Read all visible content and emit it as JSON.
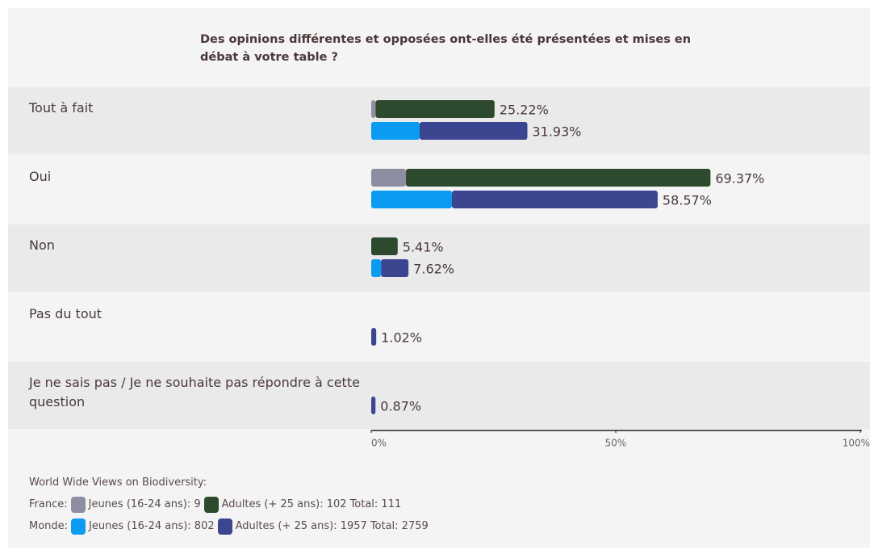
{
  "chart_data": {
    "type": "bar",
    "orientation": "horizontal",
    "stacked": true,
    "title": "Des opinions différentes et opposées ont-elles été présentées et mises en débat à votre table ?",
    "categories": [
      "Tout à fait",
      "Oui",
      "Non",
      "Pas du tout",
      "Je ne sais pas / Je ne souhaite pas répondre à cette question"
    ],
    "xlim": [
      0,
      100
    ],
    "xticks": [
      {
        "value": 0,
        "label": "0%"
      },
      {
        "value": 50,
        "label": "50%"
      },
      {
        "value": 100,
        "label": "100%"
      }
    ],
    "source": "World Wide Views on Biodiversity:",
    "groups": [
      {
        "name": "France:",
        "total": "Total: 111",
        "values": [
          25.22,
          69.37,
          5.41,
          null,
          null
        ],
        "value_labels": [
          "25.22%",
          "69.37%",
          "5.41%",
          null,
          null
        ],
        "series": [
          {
            "name": "Jeunes (16-24 ans): 9",
            "color": "#8e8ea2",
            "values": [
              0.9,
              7.1,
              0,
              null,
              null
            ]
          },
          {
            "name": "Adultes (+ 25 ans): 102",
            "color": "#2e4a2e",
            "values": [
              24.32,
              62.27,
              5.41,
              null,
              null
            ]
          }
        ]
      },
      {
        "name": "Monde:",
        "total": "Total: 2759",
        "values": [
          31.93,
          58.57,
          7.62,
          1.02,
          0.87
        ],
        "value_labels": [
          "31.93%",
          "58.57%",
          "7.62%",
          "1.02%",
          "0.87%"
        ],
        "series": [
          {
            "name": "Jeunes (16-24 ans): 802",
            "color": "#0b9bf0",
            "values": [
              9.9,
              16.5,
              2.0,
              0,
              0
            ]
          },
          {
            "name": "Adultes (+ 25 ans): 1957",
            "color": "#3c4690",
            "values": [
              22.03,
              42.07,
              5.62,
              1.02,
              0.87
            ]
          }
        ]
      }
    ]
  }
}
